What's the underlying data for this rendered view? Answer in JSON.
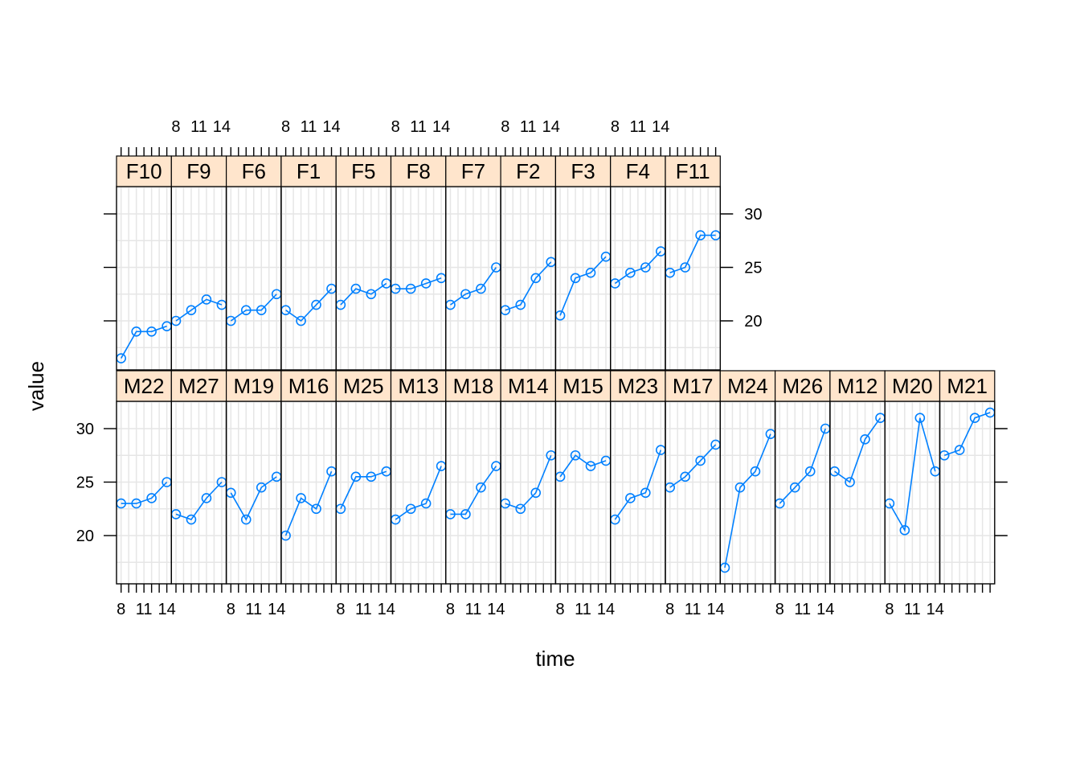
{
  "chart_data": {
    "type": "line",
    "layout": "trellis",
    "xlabel": "time",
    "ylabel": "value",
    "x": [
      8,
      10,
      12,
      14
    ],
    "x_tick_labels": [
      "8",
      "11",
      "14"
    ],
    "x_tick_values": [
      8,
      11,
      14
    ],
    "xlim": [
      7.4,
      14.6
    ],
    "ylim": [
      16,
      33
    ],
    "y_tick_values": [
      20,
      25,
      30
    ],
    "grid": true,
    "point_style": "open-circle",
    "line_color": "#0080ff",
    "strip_color": "#ffe5cc",
    "rows": [
      {
        "row": "bottom",
        "panels": [
          {
            "name": "M22",
            "values": [
              23,
              23,
              23.5,
              25
            ]
          },
          {
            "name": "M27",
            "values": [
              22,
              21.5,
              23.5,
              25
            ]
          },
          {
            "name": "M19",
            "values": [
              24,
              21.5,
              24.5,
              25.5
            ]
          },
          {
            "name": "M16",
            "values": [
              20,
              23.5,
              22.5,
              26
            ]
          },
          {
            "name": "M25",
            "values": [
              22.5,
              25.5,
              25.5,
              26
            ]
          },
          {
            "name": "M13",
            "values": [
              21.5,
              22.5,
              23,
              26.5
            ]
          },
          {
            "name": "M18",
            "values": [
              22,
              22,
              24.5,
              26.5
            ]
          },
          {
            "name": "M14",
            "values": [
              23,
              22.5,
              24,
              27.5
            ]
          },
          {
            "name": "M15",
            "values": [
              25.5,
              27.5,
              26.5,
              27
            ]
          },
          {
            "name": "M23",
            "values": [
              21.5,
              23.5,
              24,
              28
            ]
          },
          {
            "name": "M17",
            "values": [
              24.5,
              25.5,
              27,
              28.5
            ]
          },
          {
            "name": "M24",
            "values": [
              17,
              24.5,
              26,
              29.5
            ]
          },
          {
            "name": "M26",
            "values": [
              23,
              24.5,
              26,
              30
            ]
          },
          {
            "name": "M12",
            "values": [
              26,
              25,
              29,
              31
            ]
          },
          {
            "name": "M20",
            "values": [
              23,
              20.5,
              31,
              26
            ]
          },
          {
            "name": "M21",
            "values": [
              27.5,
              28,
              31,
              31.5
            ]
          }
        ]
      },
      {
        "row": "top",
        "panels": [
          {
            "name": "F10",
            "values": [
              16.5,
              19,
              19,
              19.5
            ]
          },
          {
            "name": "F9",
            "values": [
              20,
              21,
              22,
              21.5
            ]
          },
          {
            "name": "F6",
            "values": [
              20,
              21,
              21,
              22.5
            ]
          },
          {
            "name": "F1",
            "values": [
              21,
              20,
              21.5,
              23
            ]
          },
          {
            "name": "F5",
            "values": [
              21.5,
              23,
              22.5,
              23.5
            ]
          },
          {
            "name": "F8",
            "values": [
              23,
              23,
              23.5,
              24
            ]
          },
          {
            "name": "F7",
            "values": [
              21.5,
              22.5,
              23,
              25
            ]
          },
          {
            "name": "F2",
            "values": [
              21,
              21.5,
              24,
              25.5
            ]
          },
          {
            "name": "F3",
            "values": [
              20.5,
              24,
              24.5,
              26
            ]
          },
          {
            "name": "F4",
            "values": [
              23.5,
              24.5,
              25,
              26.5
            ]
          },
          {
            "name": "F11",
            "values": [
              24.5,
              25,
              28,
              28
            ]
          }
        ]
      }
    ]
  }
}
